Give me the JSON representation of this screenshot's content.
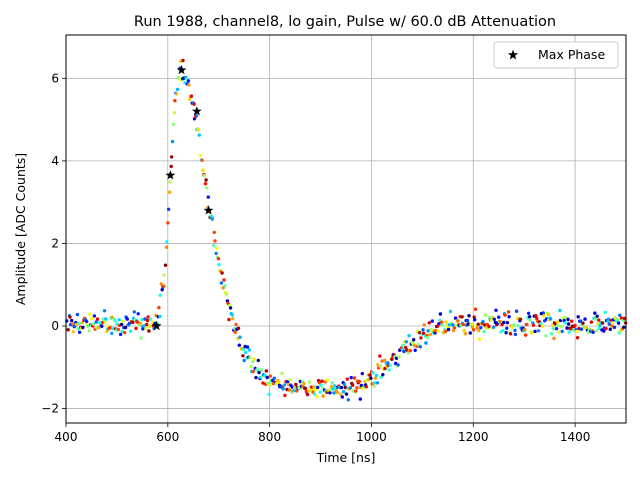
{
  "chart_data": {
    "type": "scatter",
    "title": "Run 1988, channel8, lo gain, Pulse w/ 60.0 dB Attenuation",
    "xlabel": "Time [ns]",
    "ylabel": "Amplitude [ADC Counts]",
    "xlim": [
      400,
      1500
    ],
    "ylim": [
      -2.35,
      7.05
    ],
    "xticks": [
      400,
      600,
      800,
      1000,
      1200,
      1400
    ],
    "yticks": [
      -2,
      0,
      2,
      4,
      6
    ],
    "xtick_labels": [
      "400",
      "600",
      "800",
      "1000",
      "1200",
      "1400"
    ],
    "ytick_labels": [
      "−2",
      "0",
      "2",
      "4",
      "6"
    ],
    "grid": true,
    "legend": {
      "position": "top-right",
      "entries": [
        "Max Phase"
      ]
    },
    "pulse_template": [
      [
        400,
        0.05
      ],
      [
        560,
        0.05
      ],
      [
        580,
        0.15
      ],
      [
        595,
        1.4
      ],
      [
        605,
        3.6
      ],
      [
        615,
        5.6
      ],
      [
        625,
        6.15
      ],
      [
        635,
        6.05
      ],
      [
        645,
        5.6
      ],
      [
        660,
        4.7
      ],
      [
        675,
        3.4
      ],
      [
        690,
        2.2
      ],
      [
        710,
        1.0
      ],
      [
        730,
        0.0
      ],
      [
        750,
        -0.6
      ],
      [
        775,
        -1.1
      ],
      [
        800,
        -1.35
      ],
      [
        850,
        -1.5
      ],
      [
        900,
        -1.55
      ],
      [
        950,
        -1.5
      ],
      [
        985,
        -1.45
      ],
      [
        1000,
        -1.3
      ],
      [
        1020,
        -1.0
      ],
      [
        1050,
        -0.7
      ],
      [
        1080,
        -0.45
      ],
      [
        1110,
        -0.15
      ],
      [
        1150,
        0.0
      ],
      [
        1200,
        0.05
      ],
      [
        1500,
        0.05
      ]
    ],
    "scatter_noise_sigma": 0.13,
    "colormap": "jet",
    "series": [
      {
        "name": "Max Phase",
        "marker": "star",
        "color": "#000000",
        "x": [
          578,
          605,
          627,
          657,
          680
        ],
        "y": [
          0.0,
          3.65,
          6.2,
          5.2,
          2.8
        ]
      }
    ]
  }
}
